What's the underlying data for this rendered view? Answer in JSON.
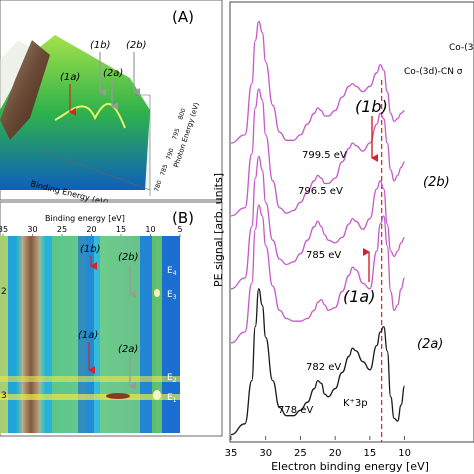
{
  "panels": {
    "A": {
      "label": "(A)",
      "annotations": {
        "1a": "(1a)",
        "1b": "(1b)",
        "2a": "(2a)",
        "2b": "(2b)"
      },
      "xlabel": "Binding Energy (eV)",
      "zlabel": "Photon Energy (eV)",
      "ticks": [
        "800",
        "795",
        "790",
        "785",
        "780"
      ]
    },
    "B": {
      "label": "(B)",
      "xlabel": "Binding energy [eV]",
      "xticks": [
        "35",
        "30",
        "25",
        "20",
        "15",
        "10",
        "5"
      ],
      "xtick_values": [
        35,
        30,
        25,
        20,
        15,
        10,
        5
      ],
      "annotations": {
        "1a": "(1a)",
        "1b": "(1b)",
        "2a": "(2a)",
        "2b": "(2b)"
      },
      "level_labels": [
        "E",
        "E",
        "E",
        "E"
      ],
      "level_subs": [
        "4",
        "3",
        "2",
        "1"
      ],
      "left_edge_digits": [
        "2",
        "3"
      ]
    }
  },
  "chart_data": {
    "type": "line",
    "title": "",
    "xlabel": "Electron binding energy [eV]",
    "ylabel": "PE signal [arb. units]",
    "xlim": [
      35,
      0
    ],
    "x_reversed": true,
    "xticks": [
      35,
      30,
      25,
      20,
      15,
      10
    ],
    "xtick_labels": [
      "35",
      "30",
      "25",
      "20",
      "15",
      "10"
    ],
    "x": [
      35,
      33,
      32,
      31.5,
      31,
      30.5,
      30,
      29,
      28,
      27,
      26,
      25,
      24,
      23,
      22.5,
      22,
      21.5,
      21,
      20,
      19,
      18,
      17.5,
      17,
      16,
      15,
      14,
      13.5,
      13,
      12.5,
      12,
      11.5,
      11,
      10.5,
      10
    ],
    "series": [
      {
        "name": "778 eV",
        "color": "#1a1a1a",
        "values": [
          0.02,
          0.06,
          0.22,
          0.42,
          0.56,
          0.5,
          0.38,
          0.22,
          0.12,
          0.09,
          0.09,
          0.11,
          0.14,
          0.19,
          0.22,
          0.21,
          0.17,
          0.16,
          0.19,
          0.25,
          0.31,
          0.34,
          0.33,
          0.29,
          0.26,
          0.35,
          0.4,
          0.42,
          0.33,
          0.16,
          0.08,
          0.07,
          0.13,
          0.2
        ]
      },
      {
        "name": "782 eV",
        "color": "#c45ac8",
        "values": [
          0.36,
          0.4,
          0.58,
          0.78,
          0.87,
          0.83,
          0.72,
          0.57,
          0.48,
          0.45,
          0.44,
          0.44,
          0.45,
          0.48,
          0.51,
          0.52,
          0.5,
          0.48,
          0.49,
          0.55,
          0.61,
          0.64,
          0.63,
          0.58,
          0.56,
          0.7,
          0.8,
          0.83,
          0.72,
          0.55,
          0.48,
          0.5,
          0.56,
          0.6
        ]
      },
      {
        "name": "785 eV",
        "color": "#c45ac8",
        "values": [
          0.56,
          0.6,
          0.79,
          0.97,
          1.05,
          1.0,
          0.88,
          0.74,
          0.67,
          0.65,
          0.66,
          0.69,
          0.74,
          0.79,
          0.81,
          0.79,
          0.76,
          0.74,
          0.73,
          0.75,
          0.8,
          0.82,
          0.81,
          0.78,
          0.82,
          0.93,
          0.96,
          0.93,
          0.8,
          0.7,
          0.68,
          0.7,
          0.73,
          0.75
        ]
      },
      {
        "name": "796.5 eV",
        "color": "#c45ac8",
        "values": [
          0.83,
          0.86,
          1.06,
          1.23,
          1.3,
          1.26,
          1.13,
          0.96,
          0.86,
          0.84,
          0.85,
          0.88,
          0.92,
          0.96,
          0.98,
          0.97,
          0.95,
          0.95,
          0.97,
          1.03,
          1.08,
          1.1,
          1.09,
          1.07,
          1.1,
          1.17,
          1.21,
          1.19,
          1.1,
          1.0,
          0.96,
          0.98,
          1.01,
          1.03
        ]
      },
      {
        "name": "799.5 eV",
        "color": "#c45ac8",
        "values": [
          1.1,
          1.13,
          1.32,
          1.48,
          1.55,
          1.51,
          1.4,
          1.24,
          1.14,
          1.11,
          1.11,
          1.13,
          1.17,
          1.21,
          1.23,
          1.22,
          1.2,
          1.2,
          1.22,
          1.27,
          1.31,
          1.32,
          1.31,
          1.29,
          1.31,
          1.36,
          1.39,
          1.37,
          1.29,
          1.21,
          1.18,
          1.19,
          1.21,
          1.22
        ]
      }
    ],
    "series_labels": [
      "778 eV",
      "782 eV",
      "785 eV",
      "796.5 eV",
      "799.5 eV"
    ],
    "annotations": {
      "1a": "(1a)",
      "1b": "(1b)",
      "2a": "(2a)",
      "2b": "(2b)",
      "k3p": "K⁺3p"
    },
    "top_labels": [
      "Co-(3",
      "Co-(3d)-CN σ"
    ],
    "marker_line_x": 13.3,
    "colors": {
      "magenta": "#c45ac8",
      "black": "#1a1a1a",
      "red": "#d6232a"
    }
  }
}
